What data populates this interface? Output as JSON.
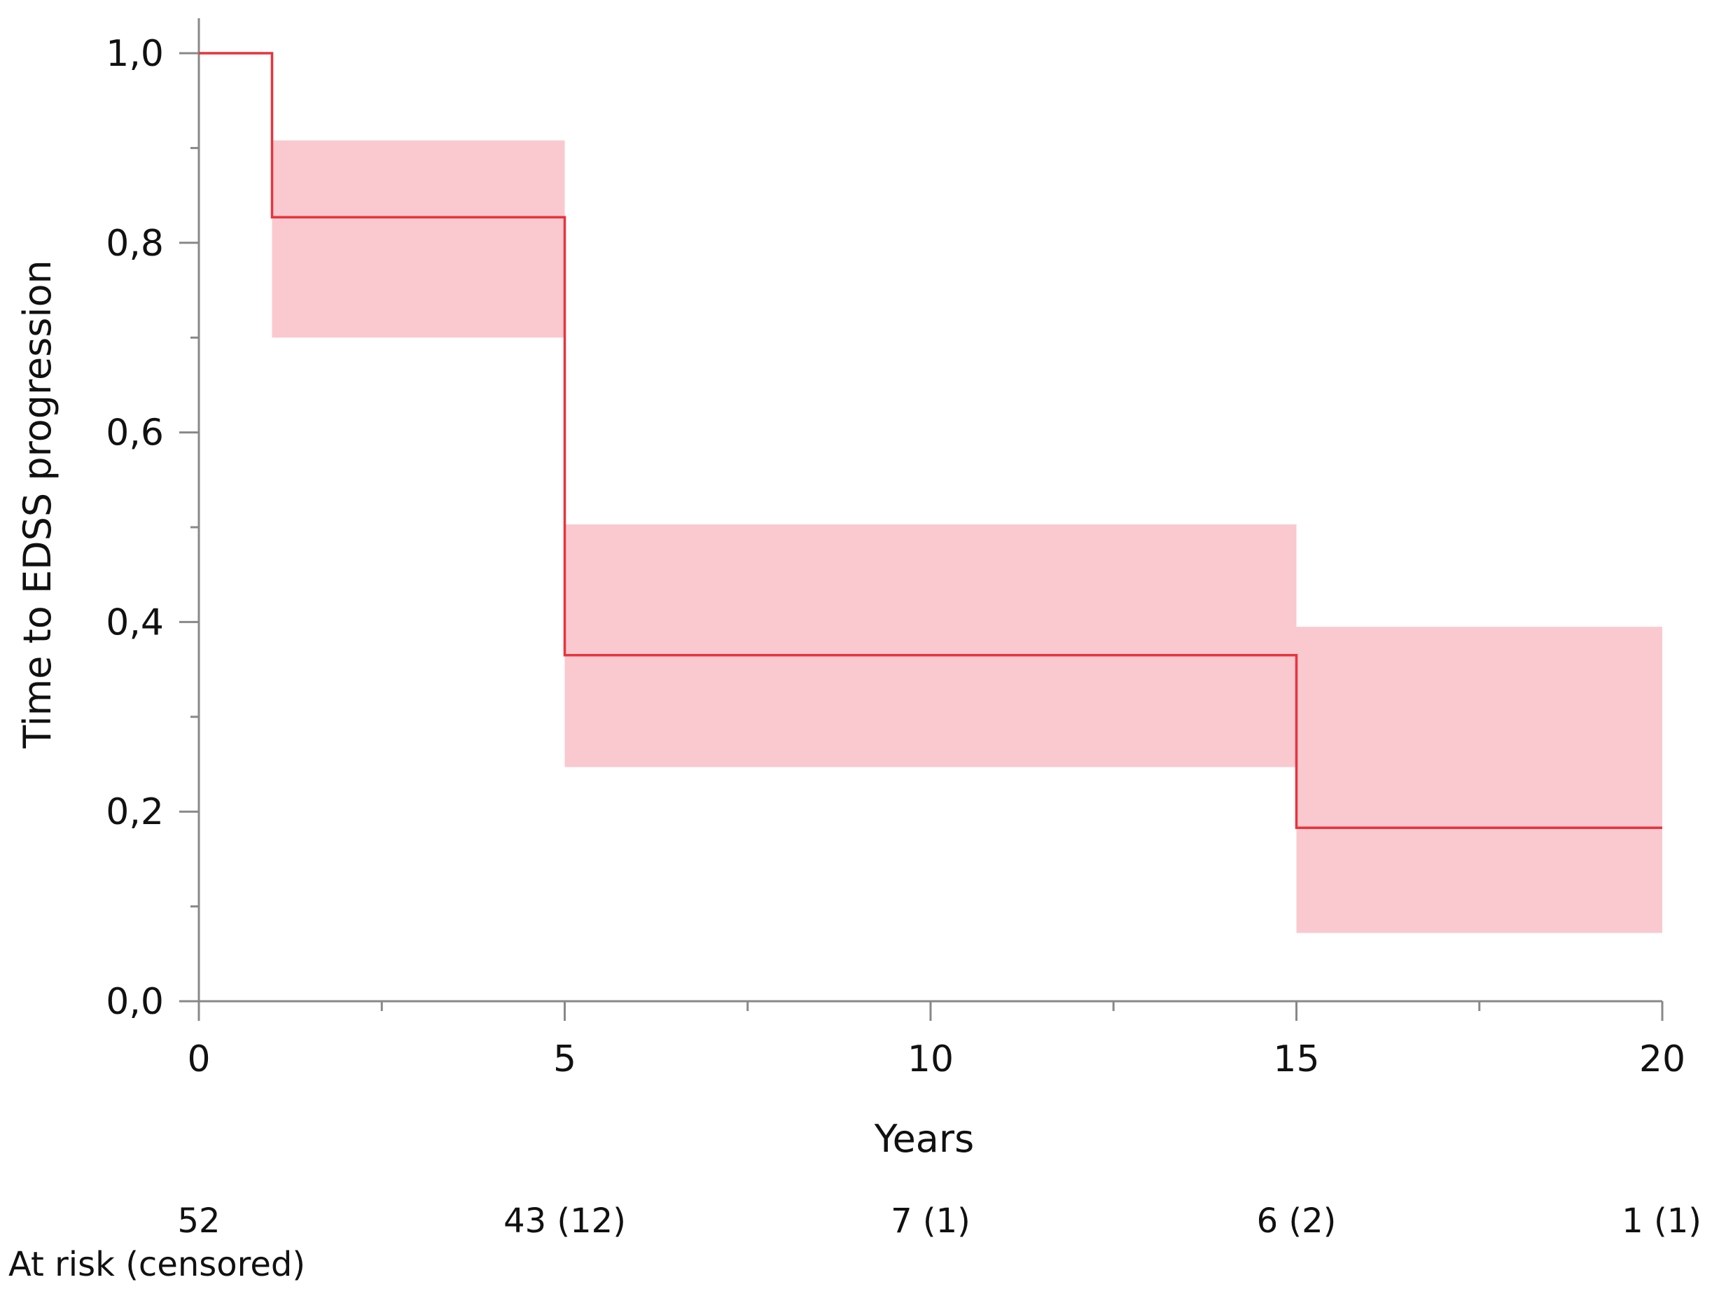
{
  "chart_data": {
    "type": "line",
    "subtype": "kaplan-meier",
    "title": "",
    "xlabel": "Years",
    "ylabel": "Time to EDSS progression",
    "xlim": [
      0,
      20
    ],
    "ylim": [
      0,
      1
    ],
    "x_ticks": [
      "0",
      "5",
      "10",
      "15",
      "20"
    ],
    "y_ticks": [
      "0,0",
      "0,2",
      "0,4",
      "0,6",
      "0,8",
      "1,0"
    ],
    "grid": false,
    "legend": "none",
    "colors": {
      "line": "#e8333c",
      "band": "#f9c9cf",
      "axis": "#888888"
    },
    "series": [
      {
        "step_x": [
          0,
          1,
          1,
          5,
          5,
          15,
          15,
          20
        ],
        "step_y": [
          1.0,
          1.0,
          0.827,
          0.827,
          0.365,
          0.365,
          0.183,
          0.183
        ],
        "ci_bands": [
          {
            "x0": 1,
            "x1": 5,
            "lower": 0.7,
            "upper": 0.908
          },
          {
            "x0": 5,
            "x1": 15,
            "lower": 0.247,
            "upper": 0.503
          },
          {
            "x0": 15,
            "x1": 20,
            "lower": 0.072,
            "upper": 0.395
          }
        ]
      }
    ],
    "at_risk": {
      "label": "At risk (censored)",
      "values": [
        "52",
        "43 (12)",
        "7 (1)",
        "6 (2)",
        "1 (1)"
      ]
    }
  }
}
